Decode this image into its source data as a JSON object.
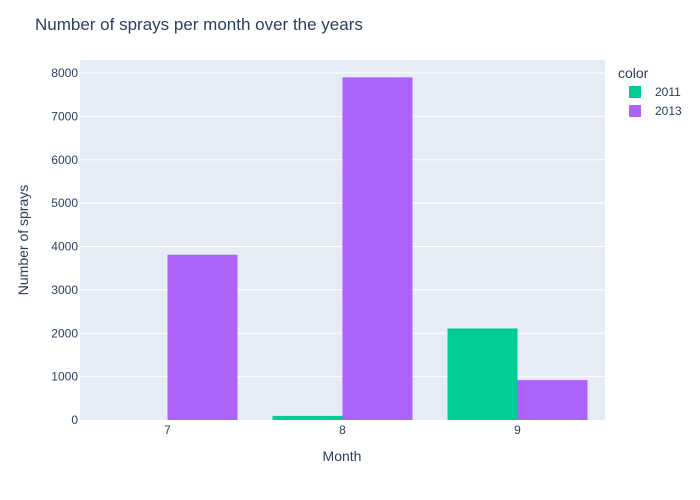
{
  "chart_data": {
    "type": "bar",
    "title": "Number of sprays per month over the years",
    "xlabel": "Month",
    "ylabel": "Number of sprays",
    "categories": [
      "7",
      "8",
      "9"
    ],
    "series": [
      {
        "name": "2011",
        "color": "#00cc96",
        "values": [
          0,
          95,
          2110
        ]
      },
      {
        "name": "2013",
        "color": "#ab63fa",
        "values": [
          3810,
          7900,
          920
        ]
      }
    ],
    "ylim": [
      0,
      8300
    ],
    "yticks": [
      0,
      1000,
      2000,
      3000,
      4000,
      5000,
      6000,
      7000,
      8000
    ],
    "ytick_labels": [
      "0",
      "1000",
      "2000",
      "3000",
      "4000",
      "5000",
      "6000",
      "7000",
      "8000"
    ],
    "legend_title": "color",
    "legend_position": "top-right",
    "grid": true,
    "plot_bg": "#e5ecf6"
  }
}
